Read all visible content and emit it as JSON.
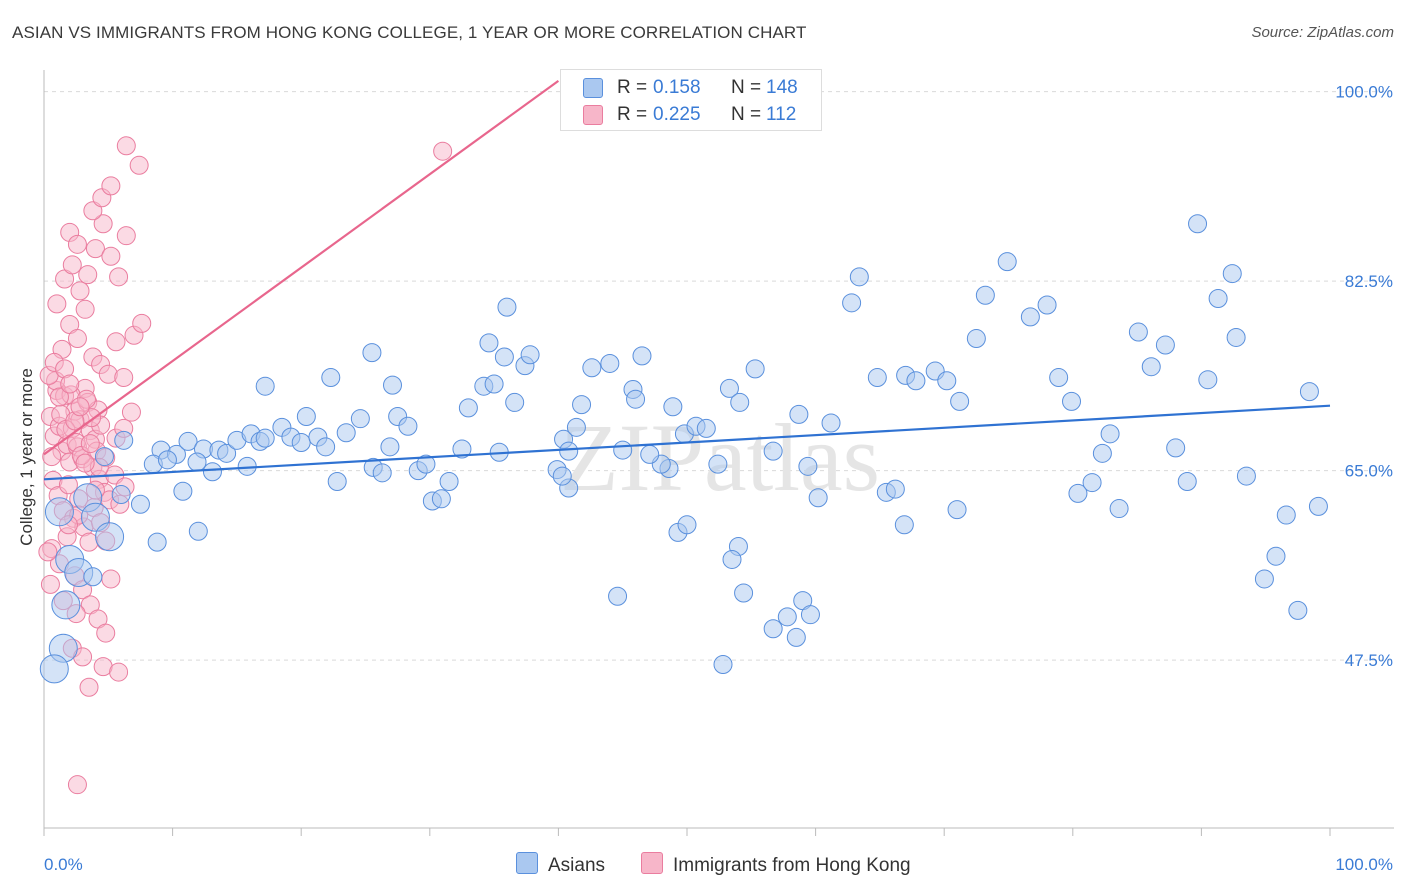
{
  "title": "ASIAN VS IMMIGRANTS FROM HONG KONG COLLEGE, 1 YEAR OR MORE CORRELATION CHART",
  "source": "Source: ZipAtlas.com",
  "watermark": "ZIPatlas",
  "legend": {
    "rows": [
      {
        "r_label": "R =",
        "r_value": "0.158",
        "n_label": "N =",
        "n_value": "148",
        "color": "#aac8f0"
      },
      {
        "r_label": "R =",
        "r_value": "0.225",
        "n_label": "N =",
        "n_value": "112",
        "color": "#f7b6c9"
      }
    ]
  },
  "bottom_legend": [
    {
      "label": "Asians",
      "color": "#aac8f0"
    },
    {
      "label": "Immigrants from Hong Kong",
      "color": "#f7b6c9"
    }
  ],
  "colors": {
    "blue_fill": "#aac8f0",
    "blue_stroke": "#5a90dd",
    "blue_line": "#2f72d2",
    "pink_fill": "#f7b6c9",
    "pink_stroke": "#ea7d9f",
    "pink_line": "#e8668d",
    "tick_label": "#3a7bd5"
  },
  "chart_data": {
    "type": "scatter",
    "title": "ASIAN VS IMMIGRANTS FROM HONG KONG COLLEGE, 1 YEAR OR MORE CORRELATION CHART",
    "xlabel": "",
    "ylabel": "College, 1 year or more",
    "xlim": [
      0,
      100
    ],
    "ylim": [
      32,
      102
    ],
    "x_tick_labels": [
      "0.0%",
      "100.0%"
    ],
    "y_ticks": [
      47.5,
      65.0,
      82.5,
      100.0
    ],
    "y_tick_labels": [
      "47.5%",
      "65.0%",
      "82.5%",
      "100.0%"
    ],
    "grid": "horizontal dashed",
    "legend_placement": "top-center and bottom",
    "series": [
      {
        "name": "Asians",
        "r": 0.158,
        "n": 148,
        "trend": {
          "x": [
            0,
            100
          ],
          "y": [
            64.2,
            71.0
          ]
        },
        "points": [
          [
            9.1,
            66.9
          ],
          [
            10.3,
            66.5
          ],
          [
            11.2,
            67.7
          ],
          [
            12.4,
            67.0
          ],
          [
            13.6,
            66.9
          ],
          [
            14.2,
            66.6
          ],
          [
            15.0,
            67.8
          ],
          [
            15.8,
            65.4
          ],
          [
            8.5,
            65.6
          ],
          [
            9.6,
            66.0
          ],
          [
            10.8,
            63.1
          ],
          [
            11.9,
            65.8
          ],
          [
            13.1,
            64.9
          ],
          [
            16.1,
            68.4
          ],
          [
            16.8,
            67.7
          ],
          [
            17.2,
            68.0
          ],
          [
            18.5,
            69.0
          ],
          [
            19.2,
            68.1
          ],
          [
            20.0,
            67.6
          ],
          [
            20.4,
            70.0
          ],
          [
            21.3,
            68.1
          ],
          [
            21.9,
            67.2
          ],
          [
            22.8,
            64.0
          ],
          [
            23.5,
            68.5
          ],
          [
            24.6,
            69.8
          ],
          [
            25.6,
            65.3
          ],
          [
            26.3,
            64.8
          ],
          [
            26.9,
            67.2
          ],
          [
            27.5,
            70.0
          ],
          [
            28.3,
            69.1
          ],
          [
            29.1,
            65.0
          ],
          [
            29.7,
            65.6
          ],
          [
            27.1,
            72.9
          ],
          [
            25.5,
            75.9
          ],
          [
            22.3,
            73.6
          ],
          [
            17.2,
            72.8
          ],
          [
            30.2,
            62.2
          ],
          [
            30.9,
            62.4
          ],
          [
            31.5,
            64.0
          ],
          [
            32.5,
            67.0
          ],
          [
            33.0,
            70.8
          ],
          [
            34.2,
            72.8
          ],
          [
            34.6,
            76.8
          ],
          [
            35.4,
            66.7
          ],
          [
            35.8,
            75.5
          ],
          [
            36.0,
            80.1
          ],
          [
            36.6,
            71.3
          ],
          [
            37.4,
            74.7
          ],
          [
            37.8,
            75.7
          ],
          [
            35.0,
            73.0
          ],
          [
            39.9,
            65.1
          ],
          [
            40.4,
            67.9
          ],
          [
            40.8,
            66.8
          ],
          [
            41.4,
            69.0
          ],
          [
            42.6,
            74.5
          ],
          [
            44.0,
            74.9
          ],
          [
            45.0,
            66.9
          ],
          [
            45.8,
            72.5
          ],
          [
            46.5,
            75.6
          ],
          [
            46.0,
            71.6
          ],
          [
            41.8,
            71.1
          ],
          [
            40.8,
            63.4
          ],
          [
            40.3,
            64.5
          ],
          [
            49.3,
            59.3
          ],
          [
            48.6,
            65.2
          ],
          [
            48.0,
            65.6
          ],
          [
            47.1,
            66.5
          ],
          [
            48.9,
            70.9
          ],
          [
            49.8,
            68.4
          ],
          [
            50.7,
            69.1
          ],
          [
            51.5,
            68.9
          ],
          [
            52.4,
            65.6
          ],
          [
            53.3,
            72.6
          ],
          [
            54.1,
            71.3
          ],
          [
            55.3,
            74.4
          ],
          [
            56.7,
            66.8
          ],
          [
            58.7,
            70.2
          ],
          [
            59.4,
            65.4
          ],
          [
            60.2,
            62.5
          ],
          [
            61.2,
            69.4
          ],
          [
            62.8,
            80.5
          ],
          [
            63.4,
            82.9
          ],
          [
            64.8,
            73.6
          ],
          [
            65.5,
            63.0
          ],
          [
            66.2,
            63.3
          ],
          [
            66.9,
            60.0
          ],
          [
            67.0,
            73.8
          ],
          [
            67.8,
            73.3
          ],
          [
            69.3,
            74.2
          ],
          [
            70.2,
            73.3
          ],
          [
            71.0,
            61.4
          ],
          [
            71.2,
            71.4
          ],
          [
            72.5,
            77.2
          ],
          [
            73.2,
            81.2
          ],
          [
            74.9,
            84.3
          ],
          [
            76.7,
            79.2
          ],
          [
            78.0,
            80.3
          ],
          [
            78.9,
            73.6
          ],
          [
            79.9,
            71.4
          ],
          [
            80.4,
            62.9
          ],
          [
            81.5,
            63.9
          ],
          [
            82.3,
            66.6
          ],
          [
            82.9,
            68.4
          ],
          [
            83.6,
            61.5
          ],
          [
            85.1,
            77.8
          ],
          [
            86.1,
            74.6
          ],
          [
            87.2,
            76.6
          ],
          [
            88.0,
            67.1
          ],
          [
            88.9,
            64.0
          ],
          [
            89.7,
            87.8
          ],
          [
            90.5,
            73.4
          ],
          [
            91.3,
            80.9
          ],
          [
            92.4,
            83.2
          ],
          [
            93.5,
            64.5
          ],
          [
            92.7,
            77.3
          ],
          [
            94.9,
            55.0
          ],
          [
            95.8,
            57.1
          ],
          [
            96.6,
            60.9
          ],
          [
            97.5,
            52.1
          ],
          [
            98.4,
            72.3
          ],
          [
            99.1,
            61.7
          ],
          [
            54.0,
            58.0
          ],
          [
            53.5,
            56.8
          ],
          [
            54.4,
            53.7
          ],
          [
            56.7,
            50.4
          ],
          [
            57.8,
            51.5
          ],
          [
            58.5,
            49.6
          ],
          [
            52.8,
            47.1
          ],
          [
            44.6,
            53.4
          ],
          [
            50.0,
            60.0
          ],
          [
            59.0,
            53.0
          ],
          [
            59.6,
            51.7
          ],
          [
            1.2,
            61.2
          ],
          [
            2.0,
            56.8
          ],
          [
            3.4,
            62.5
          ],
          [
            4.0,
            60.7
          ],
          [
            5.1,
            58.9
          ],
          [
            6.0,
            62.8
          ],
          [
            2.7,
            55.6
          ],
          [
            1.5,
            48.6
          ],
          [
            0.8,
            46.7
          ],
          [
            3.8,
            55.2
          ],
          [
            1.7,
            52.6
          ],
          [
            4.7,
            66.3
          ],
          [
            6.2,
            67.8
          ],
          [
            7.5,
            61.9
          ],
          [
            8.8,
            58.4
          ],
          [
            12.0,
            59.4
          ]
        ]
      },
      {
        "name": "Immigrants from Hong Kong",
        "r": 0.225,
        "n": 112,
        "trend": {
          "x": [
            0,
            40
          ],
          "y": [
            66.5,
            101.0
          ]
        },
        "points": [
          [
            0.5,
            70.0
          ],
          [
            0.8,
            68.2
          ],
          [
            1.0,
            72.4
          ],
          [
            1.2,
            69.1
          ],
          [
            1.4,
            66.8
          ],
          [
            1.6,
            71.9
          ],
          [
            1.8,
            67.4
          ],
          [
            2.0,
            65.8
          ],
          [
            2.2,
            68.9
          ],
          [
            2.4,
            70.5
          ],
          [
            2.6,
            67.2
          ],
          [
            2.8,
            69.7
          ],
          [
            3.0,
            66.1
          ],
          [
            3.2,
            72.6
          ],
          [
            3.4,
            71.3
          ],
          [
            3.6,
            68.7
          ],
          [
            3.8,
            65.3
          ],
          [
            4.0,
            67.9
          ],
          [
            4.2,
            70.6
          ],
          [
            4.4,
            69.2
          ],
          [
            0.6,
            66.3
          ],
          [
            0.9,
            73.3
          ],
          [
            1.3,
            70.2
          ],
          [
            1.7,
            68.8
          ],
          [
            2.1,
            72.0
          ],
          [
            2.5,
            67.6
          ],
          [
            2.9,
            66.4
          ],
          [
            3.3,
            71.6
          ],
          [
            3.7,
            69.9
          ],
          [
            4.1,
            66.8
          ],
          [
            0.7,
            64.1
          ],
          [
            1.1,
            62.7
          ],
          [
            1.5,
            61.3
          ],
          [
            1.9,
            63.7
          ],
          [
            2.3,
            60.6
          ],
          [
            2.7,
            62.4
          ],
          [
            3.1,
            59.8
          ],
          [
            3.5,
            58.4
          ],
          [
            3.9,
            61.6
          ],
          [
            4.3,
            64.2
          ],
          [
            4.7,
            63.0
          ],
          [
            5.1,
            62.3
          ],
          [
            5.5,
            64.6
          ],
          [
            5.9,
            61.9
          ],
          [
            6.3,
            63.5
          ],
          [
            0.6,
            57.8
          ],
          [
            1.2,
            56.4
          ],
          [
            1.8,
            58.9
          ],
          [
            2.4,
            55.3
          ],
          [
            3.0,
            54.0
          ],
          [
            3.6,
            52.6
          ],
          [
            4.2,
            51.3
          ],
          [
            4.8,
            50.0
          ],
          [
            1.4,
            76.2
          ],
          [
            2.0,
            78.5
          ],
          [
            2.6,
            77.2
          ],
          [
            3.2,
            79.9
          ],
          [
            3.8,
            75.5
          ],
          [
            4.4,
            74.8
          ],
          [
            5.0,
            73.9
          ],
          [
            5.6,
            76.9
          ],
          [
            1.0,
            80.4
          ],
          [
            1.6,
            82.7
          ],
          [
            2.2,
            84.0
          ],
          [
            2.8,
            81.6
          ],
          [
            3.4,
            83.1
          ],
          [
            4.0,
            85.5
          ],
          [
            4.6,
            87.8
          ],
          [
            5.2,
            84.8
          ],
          [
            5.8,
            82.9
          ],
          [
            6.4,
            86.7
          ],
          [
            2.0,
            87.0
          ],
          [
            2.6,
            85.9
          ],
          [
            3.8,
            89.0
          ],
          [
            4.5,
            90.2
          ],
          [
            5.2,
            91.3
          ],
          [
            6.4,
            95.0
          ],
          [
            7.4,
            93.2
          ],
          [
            6.2,
            73.6
          ],
          [
            7.0,
            77.5
          ],
          [
            7.6,
            78.6
          ],
          [
            5.6,
            68.0
          ],
          [
            6.2,
            68.9
          ],
          [
            6.8,
            70.4
          ],
          [
            4.8,
            66.2
          ],
          [
            4.3,
            65.3
          ],
          [
            0.4,
            73.8
          ],
          [
            0.8,
            75.0
          ],
          [
            1.2,
            71.8
          ],
          [
            1.6,
            74.4
          ],
          [
            2.0,
            73.0
          ],
          [
            2.4,
            69.6
          ],
          [
            2.8,
            70.9
          ],
          [
            3.2,
            65.7
          ],
          [
            3.6,
            67.5
          ],
          [
            4.0,
            63.2
          ],
          [
            4.4,
            60.2
          ],
          [
            4.8,
            58.5
          ],
          [
            5.2,
            55.0
          ],
          [
            2.2,
            48.6
          ],
          [
            3.0,
            47.8
          ],
          [
            4.6,
            46.9
          ],
          [
            5.8,
            46.4
          ],
          [
            2.6,
            36.0
          ],
          [
            0.3,
            57.5
          ],
          [
            0.5,
            54.5
          ],
          [
            1.5,
            53.0
          ],
          [
            2.5,
            51.8
          ],
          [
            31.0,
            94.5
          ],
          [
            3.5,
            45.0
          ],
          [
            2.7,
            60.9
          ],
          [
            1.9,
            60.0
          ]
        ]
      }
    ]
  }
}
